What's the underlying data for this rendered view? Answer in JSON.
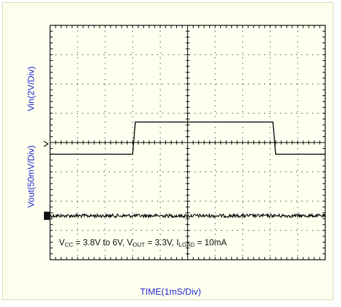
{
  "chart_data": {
    "type": "line",
    "xlabel": "TIME(1mS/Div)",
    "ylabel_top": "Vin(2V/Div)",
    "ylabel_bottom": "Vout(50mV/Div)",
    "x_divisions": 10,
    "y_divisions": 8,
    "x_unit": "ms",
    "series": [
      {
        "name": "Vin",
        "scale": "2V/Div",
        "x": [
          0,
          3.0,
          3.1,
          8.1,
          8.2,
          10
        ],
        "y": [
          3.8,
          3.8,
          6.0,
          6.0,
          3.8,
          3.8
        ]
      },
      {
        "name": "Vout",
        "scale": "50mV/Div",
        "x": [
          0,
          3.0,
          3.1,
          8.1,
          8.2,
          10
        ],
        "y": [
          3.3,
          3.3,
          3.3,
          3.3,
          3.3,
          3.3
        ],
        "ripple_mV": 6
      }
    ],
    "annotation": {
      "parts": [
        {
          "t": "V"
        },
        {
          "t": "CC",
          "sub": true
        },
        {
          "t": " = 3.8V to 6V, V"
        },
        {
          "t": "OUT",
          "sub": true
        },
        {
          "t": " = 3.3V, I"
        },
        {
          "t": "LOAD",
          "sub": true
        },
        {
          "t": " = 10mA"
        }
      ]
    }
  }
}
